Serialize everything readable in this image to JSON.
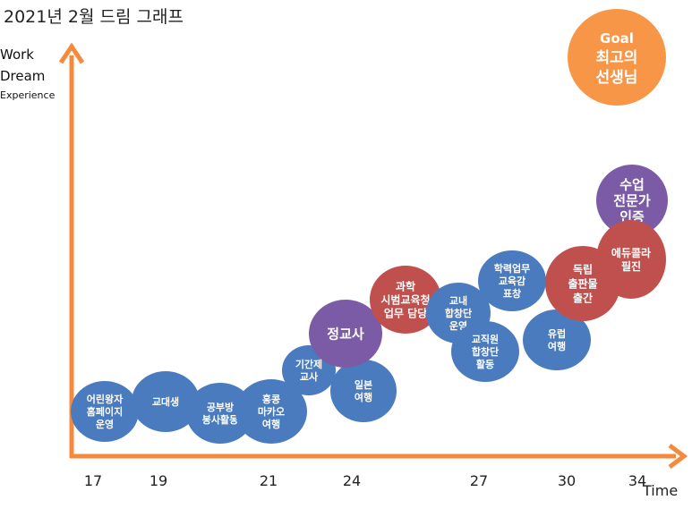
{
  "title": "2021년 2월 드림 그래프",
  "y_axis_labels": [
    "Work",
    "Dream",
    "Experience"
  ],
  "x_axis_label": "Time",
  "x_ticks": [
    "17",
    "19",
    "21",
    "24",
    "27",
    "30",
    "34"
  ],
  "colors": {
    "axis": "#F58A3C",
    "blue": "#4A7BBF",
    "red": "#C0504D",
    "purple": "#7B5BA6",
    "orange": "#F79646"
  },
  "bubbles": [
    {
      "name": "kids-homepage",
      "lines": [
        "어린왕자",
        "홈페이지",
        "운영"
      ],
      "color": "blue"
    },
    {
      "name": "teachers-college",
      "lines": [
        "교대생"
      ],
      "color": "blue"
    },
    {
      "name": "study-room-volunteer",
      "lines": [
        "공부방",
        "봉사활동"
      ],
      "color": "blue"
    },
    {
      "name": "hongkong-macau-trip",
      "lines": [
        "홍콩",
        "마카오",
        "여행"
      ],
      "color": "blue"
    },
    {
      "name": "contract-teacher",
      "lines": [
        "기간제",
        "교사"
      ],
      "color": "blue"
    },
    {
      "name": "japan-trip",
      "lines": [
        "일본",
        "여행"
      ],
      "color": "blue"
    },
    {
      "name": "regular-teacher",
      "lines": [
        "정교사"
      ],
      "color": "purple"
    },
    {
      "name": "science-pilot-office",
      "lines": [
        "과학",
        "시범교육청",
        "업무 담당"
      ],
      "color": "red"
    },
    {
      "name": "school-choir",
      "lines": [
        "교내",
        "합창단",
        "운영"
      ],
      "color": "blue"
    },
    {
      "name": "staff-choir",
      "lines": [
        "교직원",
        "합창단",
        "활동"
      ],
      "color": "blue"
    },
    {
      "name": "academic-award",
      "lines": [
        "학력업무",
        "교육감",
        "표창"
      ],
      "color": "blue"
    },
    {
      "name": "europe-trip",
      "lines": [
        "유럽",
        "여행"
      ],
      "color": "blue"
    },
    {
      "name": "book-publishing",
      "lines": [
        "독립",
        "출판물",
        "출간"
      ],
      "color": "red"
    },
    {
      "name": "class-expert-cert",
      "lines": [
        "수업",
        "전문가",
        "인증"
      ],
      "color": "purple"
    },
    {
      "name": "educolla-writing",
      "lines": [
        "에듀콜라",
        "필진"
      ],
      "color": "red"
    },
    {
      "name": "goal",
      "lines": [
        "Goal",
        "최고의",
        "선생님"
      ],
      "color": "orange"
    }
  ]
}
